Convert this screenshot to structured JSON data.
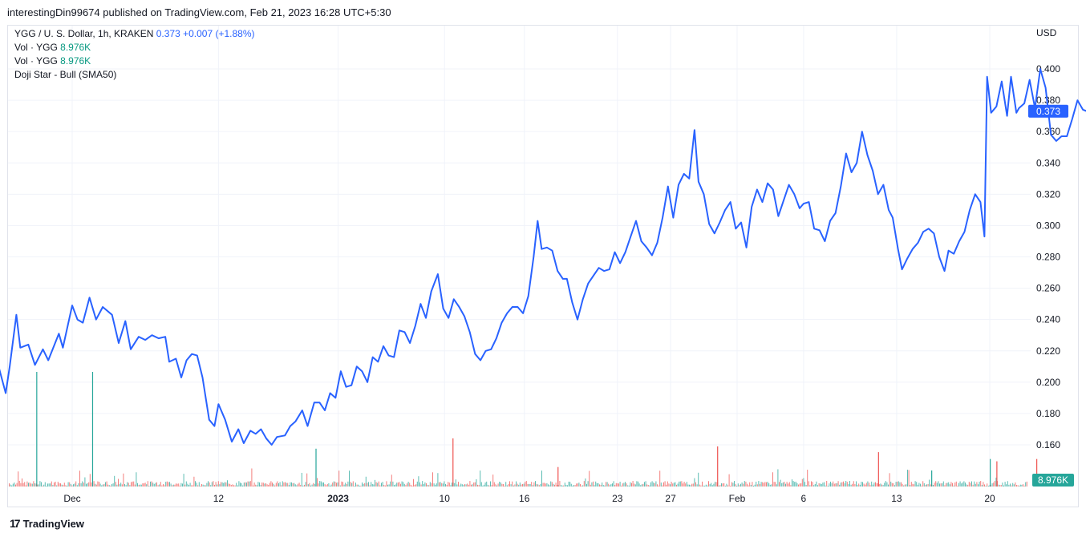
{
  "header": {
    "publisher": "interestingDin99674 published on TradingView.com, Feb 21, 2023 16:28 UTC+5:30"
  },
  "legend": {
    "symbol": "YGG / U. S. Dollar, 1h, KRAKEN",
    "last": "0.373",
    "change": "+0.007 (+1.88%)",
    "vol1_label": "Vol · YGG",
    "vol1_value": "8.976K",
    "vol2_label": "Vol · YGG",
    "vol2_value": "8.976K",
    "pattern": "Doji Star - Bull (SMA50)"
  },
  "axis": {
    "currency": "USD"
  },
  "price_badge": "0.373",
  "volume_badge": "8.976K",
  "footer": {
    "brand": "TradingView",
    "logo": "17"
  },
  "colors": {
    "line": "#2962ff",
    "up": "#26a69a",
    "down": "#ef5350",
    "grid": "#f0f3fa",
    "badge": "#2962ff",
    "vol_badge": "#26a69a"
  },
  "chart_data": {
    "type": "line",
    "title": "YGG / U. S. Dollar, 1h, KRAKEN",
    "xlabel": "",
    "ylabel": "USD",
    "ylim": [
      0.15,
      0.415
    ],
    "grid": true,
    "yticks": [
      "0.160",
      "0.180",
      "0.200",
      "0.220",
      "0.240",
      "0.260",
      "0.280",
      "0.300",
      "0.320",
      "0.340",
      "0.360",
      "0.380",
      "0.400"
    ],
    "xticks": [
      {
        "label": "Dec",
        "t": 0.0
      },
      {
        "label": "12",
        "t": 11.0
      },
      {
        "label": "2023",
        "t": 20.0
      },
      {
        "label": "10",
        "t": 28.0
      },
      {
        "label": "16",
        "t": 34.0
      },
      {
        "label": "23",
        "t": 41.0
      },
      {
        "label": "27",
        "t": 45.0
      },
      {
        "label": "Feb",
        "t": 50.0
      },
      {
        "label": "6",
        "t": 55.0
      },
      {
        "label": "13",
        "t": 62.0
      },
      {
        "label": "20",
        "t": 69.0
      }
    ],
    "x_days_range": [
      -6.1,
      71.2
    ],
    "series": [
      {
        "values": [
          [
            -6.1,
            0.209
          ],
          [
            -5.6,
            0.212
          ],
          [
            -5.0,
            0.193
          ],
          [
            -4.7,
            0.21
          ],
          [
            -4.2,
            0.243
          ],
          [
            -3.9,
            0.222
          ],
          [
            -3.3,
            0.224
          ],
          [
            -2.8,
            0.211
          ],
          [
            -2.2,
            0.221
          ],
          [
            -1.8,
            0.214
          ],
          [
            -1.0,
            0.231
          ],
          [
            -0.7,
            0.222
          ],
          [
            0.0,
            0.249
          ],
          [
            0.4,
            0.24
          ],
          [
            0.8,
            0.238
          ],
          [
            1.3,
            0.254
          ],
          [
            1.8,
            0.24
          ],
          [
            2.3,
            0.248
          ],
          [
            3.0,
            0.243
          ],
          [
            3.5,
            0.225
          ],
          [
            4.0,
            0.239
          ],
          [
            4.4,
            0.221
          ],
          [
            5.0,
            0.229
          ],
          [
            5.5,
            0.227
          ],
          [
            6.0,
            0.23
          ],
          [
            6.5,
            0.228
          ],
          [
            7.0,
            0.229
          ],
          [
            7.3,
            0.213
          ],
          [
            7.8,
            0.215
          ],
          [
            8.2,
            0.203
          ],
          [
            8.6,
            0.214
          ],
          [
            9.0,
            0.218
          ],
          [
            9.4,
            0.217
          ],
          [
            9.8,
            0.203
          ],
          [
            10.3,
            0.176
          ],
          [
            10.7,
            0.172
          ],
          [
            11.0,
            0.186
          ],
          [
            11.5,
            0.176
          ],
          [
            12.0,
            0.162
          ],
          [
            12.5,
            0.17
          ],
          [
            12.9,
            0.161
          ],
          [
            13.4,
            0.169
          ],
          [
            13.8,
            0.167
          ],
          [
            14.2,
            0.17
          ],
          [
            14.6,
            0.164
          ],
          [
            15.0,
            0.16
          ],
          [
            15.4,
            0.165
          ],
          [
            16.0,
            0.166
          ],
          [
            16.4,
            0.172
          ],
          [
            16.8,
            0.175
          ],
          [
            17.3,
            0.182
          ],
          [
            17.7,
            0.172
          ],
          [
            18.2,
            0.187
          ],
          [
            18.6,
            0.187
          ],
          [
            19.0,
            0.182
          ],
          [
            19.4,
            0.193
          ],
          [
            19.8,
            0.19
          ],
          [
            20.2,
            0.207
          ],
          [
            20.6,
            0.197
          ],
          [
            21.0,
            0.198
          ],
          [
            21.4,
            0.21
          ],
          [
            21.8,
            0.207
          ],
          [
            22.2,
            0.2
          ],
          [
            22.6,
            0.216
          ],
          [
            23.0,
            0.213
          ],
          [
            23.4,
            0.223
          ],
          [
            23.8,
            0.217
          ],
          [
            24.2,
            0.216
          ],
          [
            24.6,
            0.233
          ],
          [
            25.0,
            0.232
          ],
          [
            25.4,
            0.225
          ],
          [
            25.8,
            0.236
          ],
          [
            26.2,
            0.25
          ],
          [
            26.6,
            0.241
          ],
          [
            27.0,
            0.258
          ],
          [
            27.5,
            0.269
          ],
          [
            27.9,
            0.247
          ],
          [
            28.3,
            0.241
          ],
          [
            28.7,
            0.253
          ],
          [
            29.1,
            0.248
          ],
          [
            29.5,
            0.242
          ],
          [
            29.9,
            0.232
          ],
          [
            30.3,
            0.218
          ],
          [
            30.7,
            0.214
          ],
          [
            31.1,
            0.22
          ],
          [
            31.5,
            0.221
          ],
          [
            31.9,
            0.228
          ],
          [
            32.3,
            0.238
          ],
          [
            32.7,
            0.244
          ],
          [
            33.1,
            0.248
          ],
          [
            33.5,
            0.248
          ],
          [
            33.9,
            0.244
          ],
          [
            34.3,
            0.255
          ],
          [
            34.7,
            0.28
          ],
          [
            35.0,
            0.303
          ],
          [
            35.3,
            0.285
          ],
          [
            35.7,
            0.286
          ],
          [
            36.1,
            0.284
          ],
          [
            36.5,
            0.271
          ],
          [
            36.9,
            0.266
          ],
          [
            37.2,
            0.266
          ],
          [
            37.6,
            0.251
          ],
          [
            38.0,
            0.24
          ],
          [
            38.4,
            0.253
          ],
          [
            38.8,
            0.263
          ],
          [
            39.2,
            0.268
          ],
          [
            39.6,
            0.273
          ],
          [
            40.0,
            0.271
          ],
          [
            40.4,
            0.272
          ],
          [
            40.8,
            0.283
          ],
          [
            41.2,
            0.276
          ],
          [
            41.6,
            0.283
          ],
          [
            42.0,
            0.293
          ],
          [
            42.4,
            0.303
          ],
          [
            42.8,
            0.29
          ],
          [
            43.2,
            0.286
          ],
          [
            43.6,
            0.281
          ],
          [
            44.0,
            0.289
          ],
          [
            44.4,
            0.305
          ],
          [
            44.8,
            0.325
          ],
          [
            45.2,
            0.305
          ],
          [
            45.6,
            0.326
          ],
          [
            46.0,
            0.333
          ],
          [
            46.4,
            0.33
          ],
          [
            46.8,
            0.361
          ],
          [
            47.1,
            0.328
          ],
          [
            47.5,
            0.32
          ],
          [
            47.9,
            0.301
          ],
          [
            48.3,
            0.295
          ],
          [
            48.7,
            0.302
          ],
          [
            49.1,
            0.31
          ],
          [
            49.5,
            0.315
          ],
          [
            49.9,
            0.298
          ],
          [
            50.3,
            0.302
          ],
          [
            50.7,
            0.286
          ],
          [
            51.1,
            0.312
          ],
          [
            51.5,
            0.323
          ],
          [
            51.9,
            0.315
          ],
          [
            52.3,
            0.327
          ],
          [
            52.7,
            0.323
          ],
          [
            53.1,
            0.306
          ],
          [
            53.5,
            0.316
          ],
          [
            53.9,
            0.326
          ],
          [
            54.3,
            0.32
          ],
          [
            54.7,
            0.311
          ],
          [
            55.0,
            0.314
          ],
          [
            55.4,
            0.315
          ],
          [
            55.8,
            0.298
          ],
          [
            56.2,
            0.297
          ],
          [
            56.6,
            0.29
          ],
          [
            57.0,
            0.303
          ],
          [
            57.4,
            0.308
          ],
          [
            57.8,
            0.325
          ],
          [
            58.2,
            0.346
          ],
          [
            58.6,
            0.334
          ],
          [
            59.0,
            0.34
          ],
          [
            59.4,
            0.36
          ],
          [
            59.8,
            0.345
          ],
          [
            60.2,
            0.335
          ],
          [
            60.6,
            0.32
          ],
          [
            61.0,
            0.326
          ],
          [
            61.4,
            0.31
          ],
          [
            61.7,
            0.305
          ],
          [
            62.1,
            0.285
          ],
          [
            62.4,
            0.272
          ],
          [
            62.8,
            0.279
          ],
          [
            63.2,
            0.285
          ],
          [
            63.6,
            0.289
          ],
          [
            64.0,
            0.296
          ],
          [
            64.4,
            0.298
          ],
          [
            64.8,
            0.295
          ],
          [
            65.2,
            0.28
          ],
          [
            65.6,
            0.271
          ],
          [
            65.9,
            0.284
          ],
          [
            66.3,
            0.282
          ],
          [
            66.7,
            0.29
          ],
          [
            67.1,
            0.296
          ],
          [
            67.5,
            0.31
          ],
          [
            67.9,
            0.32
          ],
          [
            68.3,
            0.315
          ],
          [
            68.6,
            0.293
          ],
          [
            68.8,
            0.395
          ],
          [
            69.1,
            0.372
          ],
          [
            69.5,
            0.376
          ],
          [
            69.9,
            0.392
          ],
          [
            70.3,
            0.37
          ],
          [
            70.6,
            0.395
          ],
          [
            71.0,
            0.372
          ],
          [
            71.2,
            0.375
          ],
          [
            71.6,
            0.378
          ],
          [
            72.0,
            0.393
          ],
          [
            72.4,
            0.375
          ],
          [
            72.8,
            0.4
          ],
          [
            73.2,
            0.388
          ],
          [
            73.6,
            0.358
          ],
          [
            74.0,
            0.354
          ],
          [
            74.4,
            0.357
          ],
          [
            74.8,
            0.357
          ],
          [
            75.2,
            0.368
          ],
          [
            75.6,
            0.38
          ],
          [
            76.0,
            0.374
          ],
          [
            76.3,
            0.373
          ]
        ]
      }
    ],
    "volume": [
      {
        "t": -2.7,
        "v": 1.0,
        "dir": "up"
      },
      {
        "t": 1.5,
        "v": 1.0,
        "dir": "up"
      },
      {
        "t": 18.3,
        "v": 0.33,
        "dir": "up"
      },
      {
        "t": 28.6,
        "v": 0.42,
        "dir": "down"
      },
      {
        "t": 48.5,
        "v": 0.35,
        "dir": "down"
      },
      {
        "t": 60.6,
        "v": 0.3,
        "dir": "down"
      },
      {
        "t": 69.5,
        "v": 0.22,
        "dir": "down"
      },
      {
        "t": 69.0,
        "v": 0.24,
        "dir": "up"
      },
      {
        "t": 72.5,
        "v": 0.24,
        "dir": "down"
      },
      {
        "t": 36.5,
        "v": 0.17,
        "dir": "down"
      },
      {
        "t": 64.6,
        "v": 0.14,
        "dir": "up"
      }
    ],
    "last_value": 0.373
  }
}
